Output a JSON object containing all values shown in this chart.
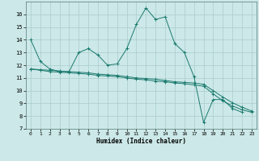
{
  "xlabel": "Humidex (Indice chaleur)",
  "bg_color": "#cce8e8",
  "grid_color": "#aacccc",
  "line_color": "#1a7a6e",
  "xlim": [
    -0.5,
    23.5
  ],
  "ylim": [
    7,
    17
  ],
  "yticks": [
    7,
    8,
    9,
    10,
    11,
    12,
    13,
    14,
    15,
    16
  ],
  "xticks": [
    0,
    1,
    2,
    3,
    4,
    5,
    6,
    7,
    8,
    9,
    10,
    11,
    12,
    13,
    14,
    15,
    16,
    17,
    18,
    19,
    20,
    21,
    22,
    23
  ],
  "series1_x": [
    0,
    1,
    2,
    3,
    4,
    5,
    6,
    7,
    8,
    9,
    10,
    11,
    12,
    13,
    14,
    15,
    16,
    17,
    18,
    19,
    20,
    21,
    22
  ],
  "series1_y": [
    14.0,
    12.3,
    11.7,
    11.5,
    11.5,
    13.0,
    13.3,
    12.8,
    12.0,
    12.1,
    13.3,
    15.2,
    16.5,
    15.6,
    15.8,
    13.7,
    13.0,
    11.1,
    7.5,
    9.3,
    9.3,
    8.6,
    8.3
  ],
  "series2_x": [
    0,
    1,
    2,
    3,
    4,
    5,
    6,
    7,
    8,
    9,
    10,
    11,
    12,
    13,
    14,
    15,
    16,
    17,
    18,
    19,
    20,
    21,
    22,
    23
  ],
  "series2_y": [
    11.7,
    11.65,
    11.6,
    11.55,
    11.5,
    11.45,
    11.4,
    11.3,
    11.25,
    11.2,
    11.1,
    11.0,
    10.95,
    10.9,
    10.8,
    10.7,
    10.65,
    10.6,
    10.5,
    10.0,
    9.5,
    9.05,
    8.7,
    8.4
  ],
  "series3_x": [
    0,
    1,
    2,
    3,
    4,
    5,
    6,
    7,
    8,
    9,
    10,
    11,
    12,
    13,
    14,
    15,
    16,
    17,
    18,
    19,
    20,
    21,
    22,
    23
  ],
  "series3_y": [
    11.7,
    11.6,
    11.5,
    11.45,
    11.4,
    11.35,
    11.3,
    11.2,
    11.15,
    11.1,
    11.0,
    10.9,
    10.85,
    10.75,
    10.7,
    10.6,
    10.55,
    10.45,
    10.35,
    9.75,
    9.2,
    8.8,
    8.5,
    8.3
  ]
}
